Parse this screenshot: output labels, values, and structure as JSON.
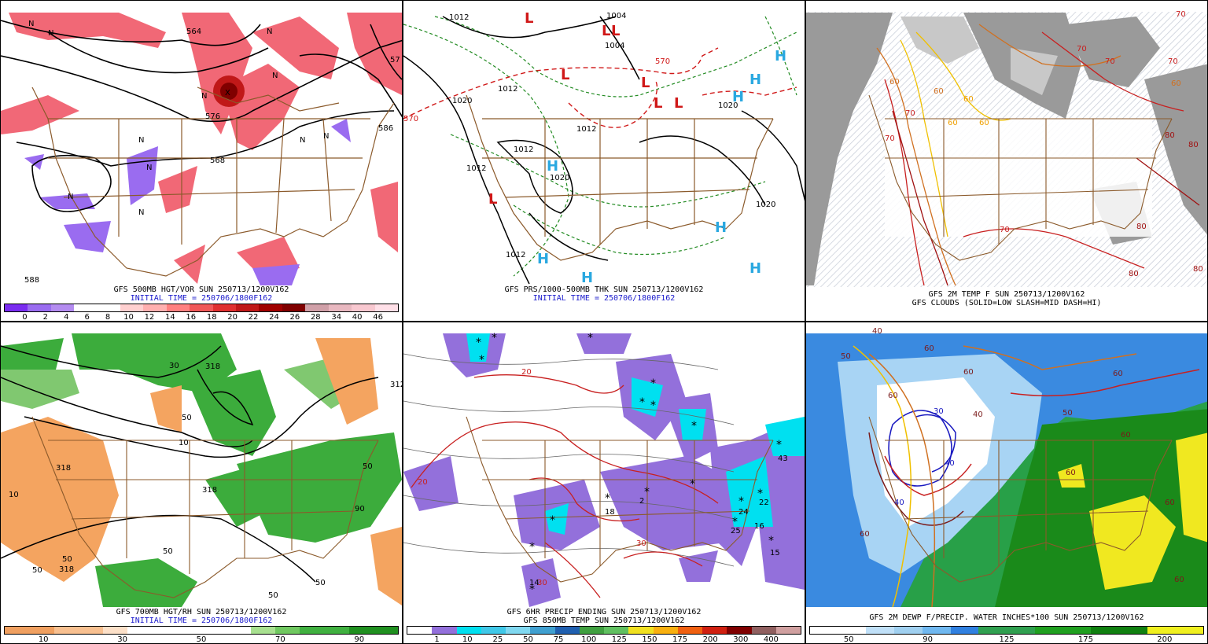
{
  "panels": [
    {
      "id": "p1",
      "caption": [
        "GFS 500MB HGT/VOR SUN 250713/1200V162",
        "INITIAL TIME = 250706/1800F162"
      ],
      "colorbar": {
        "colors": [
          "#7a2cf0",
          "#9a6cf0",
          "#b48cf0",
          "#ffffff",
          "#ffffff",
          "#ffd0d0",
          "#ffb0b0",
          "#ff8080",
          "#f05858",
          "#e03030",
          "#c01818",
          "#a00000",
          "#800000",
          "#d0a0a8",
          "#e8b8c0",
          "#f8c8d0",
          "#ffe0e8"
        ],
        "labels": [
          "0",
          "2",
          "4",
          "6",
          "8",
          "10",
          "12",
          "14",
          "16",
          "18",
          "20",
          "22",
          "24",
          "26",
          "28",
          "34",
          "40",
          "46"
        ]
      },
      "contour_labels": [
        "564",
        "576",
        "588",
        "586",
        "568",
        "588",
        "57"
      ],
      "symbols": [
        "N",
        "N",
        "N",
        "N",
        "N",
        "N",
        "N",
        "N",
        "N",
        "N",
        "N",
        "X"
      ]
    },
    {
      "id": "p2",
      "caption": [
        "GFS PRS/1000-500MB THK SUN 250713/1200V162",
        "INITIAL TIME = 250706/1800F162"
      ],
      "contour_labels": [
        "1012",
        "1004",
        "1004",
        "1020",
        "1012",
        "1012",
        "1012",
        "1012",
        "1020",
        "1020",
        "1012",
        "1020",
        "570",
        "570"
      ],
      "highs": [
        "H",
        "H",
        "H",
        "H",
        "H",
        "H",
        "H",
        "H"
      ],
      "lows": [
        "L",
        "L",
        "L",
        "L",
        "L",
        "L",
        "L",
        "L"
      ]
    },
    {
      "id": "p3",
      "caption": [
        "GFS 2M TEMP F SUN 250713/1200V162",
        "GFS CLOUDS (SOLID=LOW SLASH=MID DASH=HI)"
      ],
      "contour_labels": [
        "70",
        "70",
        "60",
        "60",
        "70",
        "60",
        "70",
        "80",
        "60",
        "60",
        "70",
        "80",
        "80",
        "70",
        "70",
        "60",
        "80",
        "80",
        "70",
        "70",
        "80",
        "80",
        "80"
      ]
    },
    {
      "id": "p4",
      "caption": [
        "GFS 700MB HGT/RH SUN 250713/1200V162",
        "INITIAL TIME = 250706/1800F162"
      ],
      "colorbar": {
        "colors": [
          "#f0a060",
          "#f0a060",
          "#f8c090",
          "#f8c090",
          "#fce0c8",
          "#ffffff",
          "#ffffff",
          "#ffffff",
          "#ffffff",
          "#ffffff",
          "#a8e090",
          "#70c860",
          "#40b040",
          "#40b040",
          "#209020",
          "#209020"
        ],
        "labels": [
          "10",
          "30",
          "50",
          "70",
          "90"
        ]
      },
      "contour_labels": [
        "318",
        "318",
        "318",
        "50",
        "50",
        "50",
        "90",
        "10",
        "50",
        "50",
        "30",
        "50",
        "318",
        "312",
        "50",
        "10"
      ]
    },
    {
      "id": "p5",
      "caption": [
        "GFS 6HR PRECIP ENDING SUN 250713/1200V162",
        "GFS 850MB TEMP SUN 250713/1200V162"
      ],
      "colorbar": {
        "colors": [
          "#ffffff",
          "#9370db",
          "#00e0f0",
          "#40c8e8",
          "#80d8f0",
          "#40a0d0",
          "#2060b0",
          "#40a040",
          "#60c060",
          "#f0e020",
          "#f8b010",
          "#f06010",
          "#d02010",
          "#800000",
          "#906060",
          "#d0a0a0"
        ],
        "labels": [
          "1",
          "10",
          "25",
          "50",
          "75",
          "100",
          "125",
          "150",
          "175",
          "200",
          "300",
          "400"
        ]
      },
      "contour_labels": [
        "20",
        "20",
        "18",
        "2",
        "22",
        "24",
        "16",
        "25",
        "43",
        "15",
        "14",
        "30",
        "30"
      ]
    },
    {
      "id": "p6",
      "caption": [
        "GFS 2M DEWP F/PRECIP. WATER INCHES*100 SUN 250713/1200V162"
      ],
      "colorbar": {
        "colors": [
          "#ffffff",
          "#ffffff",
          "#c0e0f8",
          "#a0d0f0",
          "#70b8f0",
          "#3080e0",
          "#30a050",
          "#30a050",
          "#20a020",
          "#20a020",
          "#108010",
          "#108010",
          "#f0f020",
          "#f0f020"
        ],
        "labels": [
          "50",
          "90",
          "125",
          "175",
          "200"
        ]
      },
      "contour_labels": [
        "30",
        "40",
        "40",
        "60",
        "60",
        "40",
        "50",
        "60",
        "60",
        "60",
        "50",
        "40",
        "60",
        "60",
        "60",
        "60"
      ]
    }
  ]
}
